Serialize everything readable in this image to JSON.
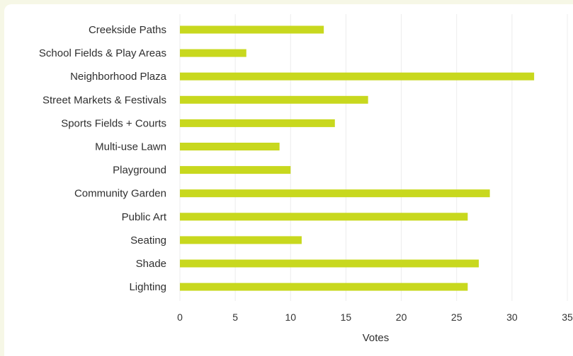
{
  "chart_data": {
    "type": "bar",
    "orientation": "horizontal",
    "categories": [
      "Creekside Paths",
      "School Fields & Play Areas",
      "Neighborhood Plaza",
      "Street Markets & Festivals",
      "Sports Fields + Courts",
      "Multi-use Lawn",
      "Playground",
      "Community Garden",
      "Public Art",
      "Seating",
      "Shade",
      "Lighting"
    ],
    "values": [
      13,
      6,
      32,
      17,
      14,
      9,
      10,
      28,
      26,
      11,
      27,
      26
    ],
    "title": "",
    "xlabel": "Votes",
    "ylabel": "",
    "xlim": [
      0,
      35
    ],
    "xticks": [
      "0",
      "5",
      "10",
      "15",
      "20",
      "25",
      "30",
      "35"
    ],
    "grid": "vertical",
    "legend": "none",
    "bar_color": "#c8d81e",
    "grid_color": "#ececec",
    "text_color": "#2f2f2f",
    "background_color": "#ffffff",
    "page_background_color": "#f6f7e6"
  }
}
